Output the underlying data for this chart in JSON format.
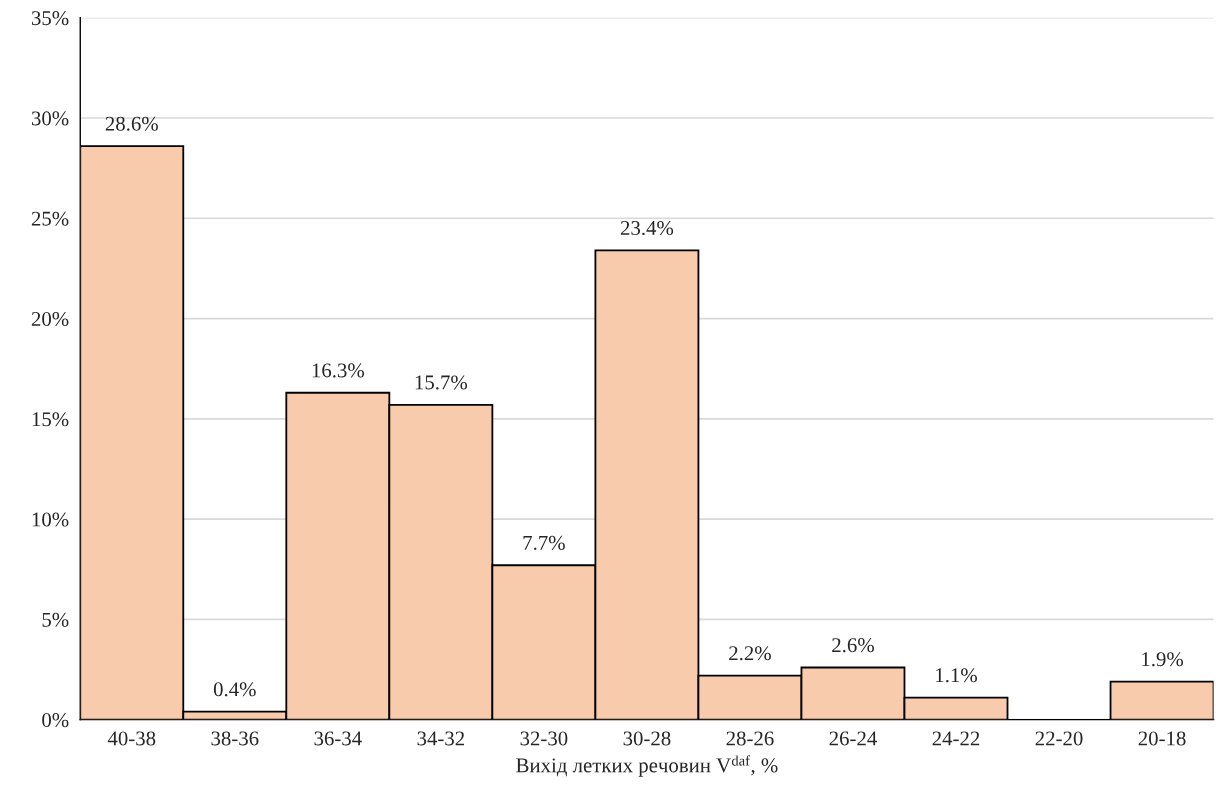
{
  "chart_data": {
    "type": "bar",
    "xlabel": "Вихід летких речовин V$^{daf}$, %",
    "categories": [
      "40-38",
      "38-36",
      "36-34",
      "34-32",
      "32-30",
      "30-28",
      "28-26",
      "26-24",
      "24-22",
      "22-20",
      "20-18"
    ],
    "values": [
      28.6,
      0.4,
      16.3,
      15.7,
      7.7,
      23.4,
      2.2,
      2.6,
      1.1,
      0,
      1.9
    ],
    "value_labels": [
      "28.6%",
      "0.4%",
      "16.3%",
      "15.7%",
      "7.7%",
      "23.4%",
      "2.2%",
      "2.6%",
      "1.1%",
      null,
      "1.9%"
    ],
    "color": "#f8cbad",
    "ylim": [
      0,
      35
    ],
    "yticks": [
      {
        "value": 0,
        "label": "0%"
      },
      {
        "value": 5,
        "label": "5%"
      },
      {
        "value": 10,
        "label": "10%"
      },
      {
        "value": 15,
        "label": "15%"
      },
      {
        "value": 20,
        "label": "20%"
      },
      {
        "value": 25,
        "label": "25%"
      },
      {
        "value": 30,
        "label": "30%"
      },
      {
        "value": 35,
        "label": "35%"
      }
    ],
    "grid": "y",
    "legend": false
  }
}
